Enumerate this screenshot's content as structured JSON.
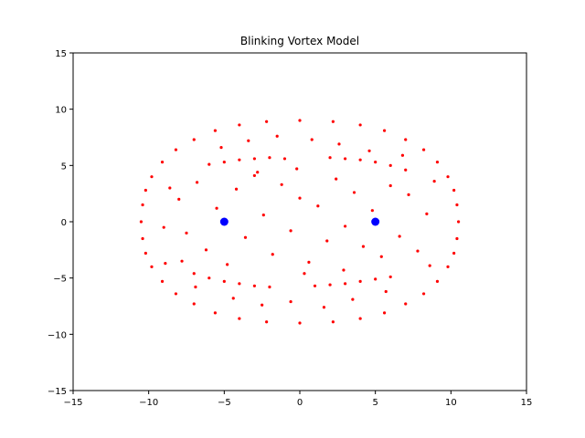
{
  "chart_data": {
    "type": "scatter",
    "title": "Blinking Vortex Model",
    "xlabel": "",
    "ylabel": "",
    "xlim": [
      -15,
      15
    ],
    "ylim": [
      -15,
      15
    ],
    "xticks": [
      -15,
      -10,
      -5,
      0,
      5,
      10,
      15
    ],
    "yticks": [
      -15,
      -10,
      -5,
      0,
      5,
      10,
      15
    ],
    "xtick_labels": [
      "−15",
      "−10",
      "−5",
      "0",
      "5",
      "10",
      "15"
    ],
    "ytick_labels": [
      "−15",
      "−10",
      "−5",
      "0",
      "5",
      "10",
      "15"
    ],
    "grid": false,
    "legend": false,
    "series": [
      {
        "color": "#ff0000",
        "marker": "dot",
        "description_points": "tracer particles filling an ellipse of semi-axes ~10.5 (x) by ~9 (y), denser along the boundary and along four arcs near y=±5.5",
        "points": [
          [
            -10.5,
            0.0
          ],
          [
            -10.4,
            1.5
          ],
          [
            -10.2,
            2.8
          ],
          [
            -9.8,
            4.0
          ],
          [
            -9.1,
            5.3
          ],
          [
            -8.2,
            6.4
          ],
          [
            -7.0,
            7.3
          ],
          [
            -5.6,
            8.1
          ],
          [
            -4.0,
            8.6
          ],
          [
            -2.2,
            8.9
          ],
          [
            0.0,
            9.0
          ],
          [
            2.2,
            8.9
          ],
          [
            4.0,
            8.6
          ],
          [
            5.6,
            8.1
          ],
          [
            7.0,
            7.3
          ],
          [
            8.2,
            6.4
          ],
          [
            9.1,
            5.3
          ],
          [
            9.8,
            4.0
          ],
          [
            10.2,
            2.8
          ],
          [
            10.4,
            1.5
          ],
          [
            10.5,
            0.0
          ],
          [
            10.4,
            -1.5
          ],
          [
            10.2,
            -2.8
          ],
          [
            9.8,
            -4.0
          ],
          [
            9.1,
            -5.3
          ],
          [
            8.2,
            -6.4
          ],
          [
            7.0,
            -7.3
          ],
          [
            5.6,
            -8.1
          ],
          [
            4.0,
            -8.6
          ],
          [
            2.2,
            -8.9
          ],
          [
            0.0,
            -9.0
          ],
          [
            -2.2,
            -8.9
          ],
          [
            -4.0,
            -8.6
          ],
          [
            -5.6,
            -8.1
          ],
          [
            -7.0,
            -7.3
          ],
          [
            -8.2,
            -6.4
          ],
          [
            -9.1,
            -5.3
          ],
          [
            -9.8,
            -4.0
          ],
          [
            -10.2,
            -2.8
          ],
          [
            -10.4,
            -1.5
          ],
          [
            -6.0,
            5.1
          ],
          [
            -5.0,
            5.3
          ],
          [
            -4.0,
            5.5
          ],
          [
            -3.0,
            5.6
          ],
          [
            -2.0,
            5.7
          ],
          [
            -1.0,
            5.6
          ],
          [
            2.0,
            5.7
          ],
          [
            3.0,
            5.6
          ],
          [
            4.0,
            5.5
          ],
          [
            5.0,
            5.3
          ],
          [
            6.0,
            5.0
          ],
          [
            7.0,
            4.6
          ],
          [
            -7.0,
            -4.6
          ],
          [
            -6.0,
            -5.0
          ],
          [
            -5.0,
            -5.3
          ],
          [
            -4.0,
            -5.5
          ],
          [
            -3.0,
            -5.7
          ],
          [
            -2.0,
            -5.8
          ],
          [
            1.0,
            -5.7
          ],
          [
            2.0,
            -5.6
          ],
          [
            3.0,
            -5.5
          ],
          [
            4.0,
            -5.3
          ],
          [
            5.0,
            -5.1
          ],
          [
            6.0,
            -4.9
          ],
          [
            -8.0,
            2.0
          ],
          [
            -7.5,
            -1.0
          ],
          [
            -6.8,
            3.5
          ],
          [
            -6.2,
            -2.5
          ],
          [
            -5.5,
            1.2
          ],
          [
            -4.8,
            -3.8
          ],
          [
            -4.2,
            2.9
          ],
          [
            -3.6,
            -1.4
          ],
          [
            -3.0,
            4.1
          ],
          [
            -2.4,
            0.6
          ],
          [
            -1.8,
            -2.9
          ],
          [
            -1.2,
            3.3
          ],
          [
            -0.6,
            -0.8
          ],
          [
            0.0,
            2.1
          ],
          [
            0.6,
            -3.6
          ],
          [
            1.2,
            1.4
          ],
          [
            1.8,
            -1.7
          ],
          [
            2.4,
            3.8
          ],
          [
            3.0,
            -0.4
          ],
          [
            3.6,
            2.6
          ],
          [
            4.2,
            -2.2
          ],
          [
            4.8,
            1.0
          ],
          [
            5.4,
            -3.1
          ],
          [
            6.0,
            3.2
          ],
          [
            6.6,
            -1.3
          ],
          [
            7.2,
            2.4
          ],
          [
            7.8,
            -2.6
          ],
          [
            8.4,
            0.7
          ],
          [
            -9.0,
            -0.5
          ],
          [
            -8.6,
            3.0
          ],
          [
            -7.8,
            -3.5
          ],
          [
            -5.2,
            6.6
          ],
          [
            -3.4,
            7.2
          ],
          [
            -1.5,
            7.6
          ],
          [
            0.8,
            7.3
          ],
          [
            2.6,
            6.9
          ],
          [
            4.6,
            6.3
          ],
          [
            -4.4,
            -6.8
          ],
          [
            -2.5,
            -7.4
          ],
          [
            -0.6,
            -7.1
          ],
          [
            1.6,
            -7.6
          ],
          [
            3.5,
            -6.9
          ],
          [
            5.7,
            -6.2
          ],
          [
            8.6,
            -3.9
          ],
          [
            8.9,
            3.6
          ],
          [
            -8.9,
            -3.7
          ],
          [
            0.3,
            -4.6
          ],
          [
            -0.2,
            4.7
          ],
          [
            2.9,
            -4.3
          ],
          [
            -2.8,
            4.4
          ],
          [
            6.8,
            5.9
          ],
          [
            -6.9,
            -5.8
          ]
        ]
      },
      {
        "color": "#0000ff",
        "marker": "circle",
        "description_points": "vortex positions",
        "points": [
          [
            -5,
            0
          ],
          [
            5,
            0
          ]
        ]
      }
    ]
  }
}
